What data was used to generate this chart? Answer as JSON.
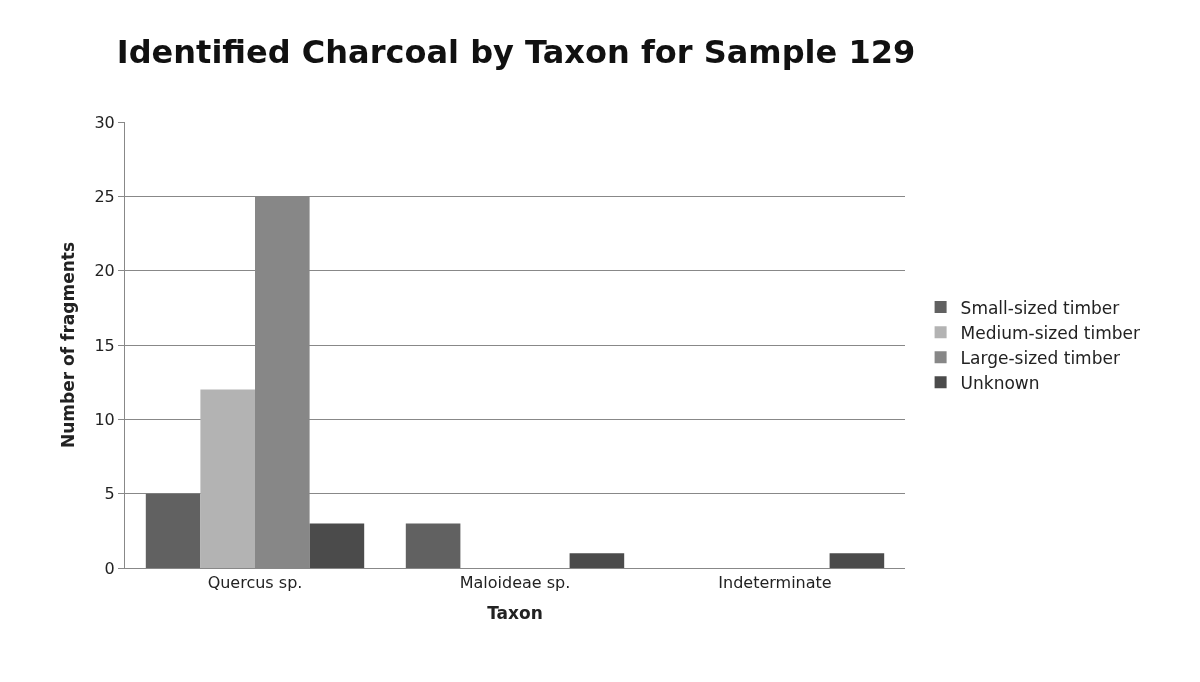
{
  "chart_data": {
    "type": "bar",
    "title": "Identified Charcoal by Taxon for Sample 129",
    "xlabel": "Taxon",
    "ylabel": "Number of fragments",
    "categories": [
      "Quercus sp.",
      "Maloideae sp.",
      "Indeterminate"
    ],
    "series": [
      {
        "name": "Small-sized timber",
        "color": "#616161",
        "values": [
          5,
          3,
          0
        ]
      },
      {
        "name": "Medium-sized timber",
        "color": "#b3b3b3",
        "values": [
          12,
          0,
          0
        ]
      },
      {
        "name": "Large-sized timber",
        "color": "#878787",
        "values": [
          25,
          0,
          0
        ]
      },
      {
        "name": "Unknown",
        "color": "#4b4b4b",
        "values": [
          3,
          1,
          1
        ]
      }
    ],
    "ylim": [
      0,
      30
    ],
    "yticks": [
      0,
      5,
      10,
      15,
      20,
      25,
      30
    ],
    "grid": "y",
    "legend": "right"
  }
}
